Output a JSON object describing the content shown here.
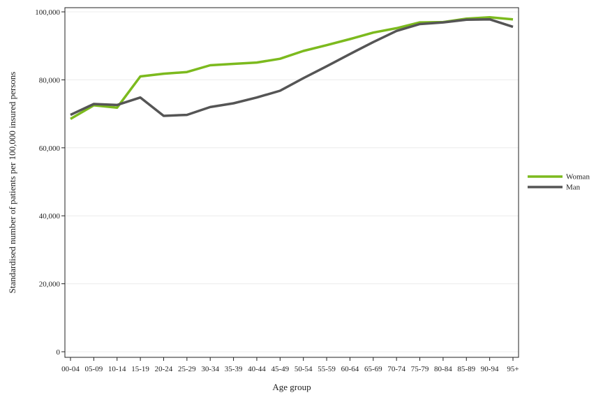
{
  "chart_data": {
    "type": "line",
    "title": "",
    "xlabel": "Age group",
    "ylabel": "Standardised number of patients per 100,000 insured persons",
    "categories": [
      "00-04",
      "05-09",
      "10-14",
      "15-19",
      "20-24",
      "25-29",
      "30-34",
      "35-39",
      "40-44",
      "45-49",
      "50-54",
      "55-59",
      "60-64",
      "65-69",
      "70-74",
      "75-79",
      "80-84",
      "85-89",
      "90-94",
      "95+"
    ],
    "series": [
      {
        "name": "Woman",
        "color": "#7cba1e",
        "values": [
          68500,
          72500,
          71800,
          81000,
          81800,
          82300,
          84300,
          84700,
          85100,
          86200,
          88500,
          90200,
          92000,
          93900,
          95200,
          96900,
          97000,
          98000,
          98400,
          97800
        ]
      },
      {
        "name": "Man",
        "color": "#555555",
        "values": [
          69700,
          72900,
          72600,
          74800,
          69400,
          69700,
          72000,
          73100,
          74800,
          76800,
          80500,
          84000,
          87600,
          91100,
          94400,
          96400,
          96900,
          97700,
          97800,
          95600
        ]
      }
    ],
    "ylim": [
      0,
      100000
    ],
    "yticks": [
      0,
      20000,
      40000,
      60000,
      80000,
      100000
    ],
    "ytick_labels": [
      "0",
      "20,000",
      "40,000",
      "60,000",
      "80,000",
      "100,000"
    ],
    "grid": true,
    "legend_position": "right"
  }
}
